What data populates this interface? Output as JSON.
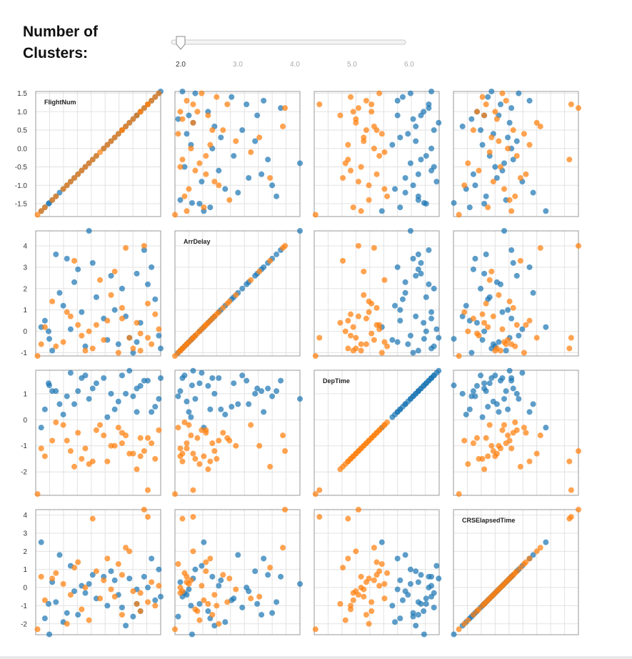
{
  "control": {
    "title": "Number of Clusters:",
    "slider": {
      "min": 2,
      "max": 6,
      "value": 2,
      "tick_labels": [
        "2.0",
        "3.0",
        "4.0",
        "5.0",
        "6.0"
      ]
    }
  },
  "chart_data": {
    "type": "scatter",
    "subtype": "scatterplot-matrix",
    "variables": [
      "FlightNum",
      "ArrDelay",
      "DepTime",
      "CRSElapsedTime"
    ],
    "cluster_colors": [
      "#1f77b4",
      "#ff7f0e"
    ],
    "cell_label_position": "top-left, on diagonal cells",
    "grid": true,
    "ranges": {
      "FlightNum": [
        -1.85,
        1.55
      ],
      "ArrDelay": [
        -1.15,
        4.7
      ],
      "DepTime": [
        -2.9,
        1.9
      ],
      "CRSElapsedTime": [
        -2.6,
        4.3
      ]
    },
    "tick_labels": {
      "FlightNum": [
        "1.5",
        "1.0",
        "0.5",
        "0.0",
        "-0.5",
        "-1.0",
        "-1.5"
      ],
      "ArrDelay": [
        "4",
        "3",
        "2",
        "1",
        "0",
        "-1"
      ],
      "DepTime": [
        "1",
        "0",
        "-1",
        "-2"
      ],
      "CRSElapsedTime": [
        "4",
        "3",
        "2",
        "1",
        "0",
        "-1",
        "-2"
      ]
    },
    "points": [
      {
        "FlightNum": -1.48,
        "ArrDelay": -0.35,
        "DepTime": 1.32,
        "CRSElapsedTime": -2.58,
        "cluster": 0
      },
      {
        "FlightNum": 1.55,
        "ArrDelay": -0.8,
        "DepTime": 1.6,
        "CRSElapsedTime": -0.5,
        "cluster": 0
      },
      {
        "FlightNum": -0.4,
        "ArrDelay": 4.7,
        "DepTime": 0.8,
        "CRSElapsedTime": 0.2,
        "cluster": 0
      },
      {
        "FlightNum": 0.7,
        "ArrDelay": -0.3,
        "DepTime": 1.88,
        "CRSElapsedTime": 0.5,
        "cluster": 0
      },
      {
        "FlightNum": -1.7,
        "ArrDelay": 0.2,
        "DepTime": -0.3,
        "CRSElapsedTime": 2.5,
        "cluster": 0
      },
      {
        "FlightNum": -1.6,
        "ArrDelay": 0.5,
        "DepTime": 0.4,
        "CRSElapsedTime": -1.7,
        "cluster": 0
      },
      {
        "FlightNum": -1.3,
        "ArrDelay": 3.6,
        "DepTime": 1.1,
        "CRSElapsedTime": -0.8,
        "cluster": 0
      },
      {
        "FlightNum": -1.0,
        "ArrDelay": 3.4,
        "DepTime": 0.9,
        "CRSElapsedTime": -1.4,
        "cluster": 0
      },
      {
        "FlightNum": 1.1,
        "ArrDelay": 3.8,
        "DepTime": 1.5,
        "CRSElapsedTime": 0.6,
        "cluster": 0
      },
      {
        "FlightNum": 0.9,
        "ArrDelay": 2.7,
        "DepTime": 1.2,
        "CRSElapsedTime": -0.9,
        "cluster": 0
      },
      {
        "FlightNum": -0.8,
        "ArrDelay": 2.3,
        "DepTime": 0.6,
        "CRSElapsedTime": -0.2,
        "cluster": 0
      },
      {
        "FlightNum": 0.5,
        "ArrDelay": 2.0,
        "DepTime": 1.7,
        "CRSElapsedTime": -1.1,
        "cluster": 0
      },
      {
        "FlightNum": 1.3,
        "ArrDelay": 3.0,
        "DepTime": 0.3,
        "CRSElapsedTime": 1.6,
        "cluster": 0
      },
      {
        "FlightNum": -0.2,
        "ArrDelay": 1.6,
        "DepTime": 1.4,
        "CRSElapsedTime": -0.6,
        "cluster": 0
      },
      {
        "FlightNum": -1.1,
        "ArrDelay": 1.2,
        "DepTime": 0.2,
        "CRSElapsedTime": -1.9,
        "cluster": 0
      },
      {
        "FlightNum": 0.2,
        "ArrDelay": 2.6,
        "DepTime": 1.0,
        "CRSElapsedTime": 0.9,
        "cluster": 0
      },
      {
        "FlightNum": 1.0,
        "ArrDelay": 0.4,
        "DepTime": 1.3,
        "CRSElapsedTime": -1.3,
        "cluster": 0
      },
      {
        "FlightNum": -0.6,
        "ArrDelay": 0.9,
        "DepTime": 1.6,
        "CRSElapsedTime": 0.1,
        "cluster": 0
      },
      {
        "FlightNum": 0.4,
        "ArrDelay": -0.6,
        "DepTime": 0.7,
        "CRSElapsedTime": -0.4,
        "cluster": 0
      },
      {
        "FlightNum": -1.4,
        "ArrDelay": -0.9,
        "DepTime": 1.1,
        "CRSElapsedTime": 0.3,
        "cluster": 0
      },
      {
        "FlightNum": 1.4,
        "ArrDelay": 1.5,
        "DepTime": 0.5,
        "CRSElapsedTime": -0.7,
        "cluster": 0
      },
      {
        "FlightNum": -0.9,
        "ArrDelay": 0.1,
        "DepTime": 1.8,
        "CRSElapsedTime": 1.2,
        "cluster": 0
      },
      {
        "FlightNum": 0.8,
        "ArrDelay": -1.0,
        "DepTime": 0.9,
        "CRSElapsedTime": -1.6,
        "cluster": 0
      },
      {
        "FlightNum": -0.3,
        "ArrDelay": 3.2,
        "DepTime": 1.2,
        "CRSElapsedTime": 0.7,
        "cluster": 0
      },
      {
        "FlightNum": 0.1,
        "ArrDelay": -0.4,
        "DepTime": 0.1,
        "CRSElapsedTime": -1.0,
        "cluster": 0
      },
      {
        "FlightNum": 1.2,
        "ArrDelay": 2.2,
        "DepTime": 1.5,
        "CRSElapsedTime": 0.0,
        "cluster": 0
      },
      {
        "FlightNum": -1.2,
        "ArrDelay": 1.8,
        "DepTime": 0.6,
        "CRSElapsedTime": 1.8,
        "cluster": 0
      },
      {
        "FlightNum": 0.6,
        "ArrDelay": 0.7,
        "DepTime": 1.0,
        "CRSElapsedTime": -2.1,
        "cluster": 0
      },
      {
        "FlightNum": -0.5,
        "ArrDelay": -0.7,
        "DepTime": 1.7,
        "CRSElapsedTime": -0.3,
        "cluster": 0
      },
      {
        "FlightNum": 0.3,
        "ArrDelay": 1.0,
        "DepTime": 0.4,
        "CRSElapsedTime": 0.4,
        "cluster": 0
      },
      {
        "FlightNum": -1.5,
        "ArrDelay": 0.0,
        "DepTime": 1.4,
        "CRSElapsedTime": -0.9,
        "cluster": 0
      },
      {
        "FlightNum": 1.5,
        "ArrDelay": -0.2,
        "DepTime": 0.8,
        "CRSElapsedTime": 1.0,
        "cluster": 0
      },
      {
        "FlightNum": -0.7,
        "ArrDelay": 2.9,
        "DepTime": 1.1,
        "CRSElapsedTime": -1.5,
        "cluster": 0
      },
      {
        "FlightNum": 0.0,
        "ArrDelay": 0.6,
        "DepTime": 1.6,
        "CRSElapsedTime": 0.6,
        "cluster": 0
      },
      {
        "FlightNum": 0.9,
        "ArrDelay": -0.5,
        "DepTime": 0.3,
        "CRSElapsedTime": -0.1,
        "cluster": 0
      },
      {
        "FlightNum": -1.8,
        "ArrDelay": -1.15,
        "DepTime": -2.85,
        "CRSElapsedTime": -2.3,
        "cluster": 1
      },
      {
        "FlightNum": 1.1,
        "ArrDelay": 4.0,
        "DepTime": -1.2,
        "CRSElapsedTime": 4.3,
        "cluster": 1
      },
      {
        "FlightNum": 1.2,
        "ArrDelay": -0.3,
        "DepTime": -2.7,
        "CRSElapsedTime": 3.9,
        "cluster": 1
      },
      {
        "FlightNum": 0.6,
        "ArrDelay": 3.9,
        "DepTime": -0.6,
        "CRSElapsedTime": 2.2,
        "cluster": 1
      },
      {
        "FlightNum": -0.8,
        "ArrDelay": 3.3,
        "DepTime": -1.8,
        "CRSElapsedTime": 1.1,
        "cluster": 1
      },
      {
        "FlightNum": 0.3,
        "ArrDelay": 2.8,
        "DepTime": -1.0,
        "CRSElapsedTime": -0.5,
        "cluster": 1
      },
      {
        "FlightNum": -1.4,
        "ArrDelay": 1.4,
        "DepTime": -0.8,
        "CRSElapsedTime": 0.5,
        "cluster": 1
      },
      {
        "FlightNum": 1.4,
        "ArrDelay": 0.8,
        "DepTime": -1.5,
        "CRSElapsedTime": -1.0,
        "cluster": 1
      },
      {
        "FlightNum": -0.2,
        "ArrDelay": 0.3,
        "DepTime": -0.4,
        "CRSElapsedTime": 0.9,
        "cluster": 1
      },
      {
        "FlightNum": 0.8,
        "ArrDelay": -0.8,
        "DepTime": -1.3,
        "CRSElapsedTime": -0.2,
        "cluster": 1
      },
      {
        "FlightNum": -1.1,
        "ArrDelay": -0.5,
        "DepTime": -0.2,
        "CRSElapsedTime": 0.2,
        "cluster": 1
      },
      {
        "FlightNum": 0.1,
        "ArrDelay": 0.5,
        "DepTime": -1.6,
        "CRSElapsedTime": 1.6,
        "cluster": 1
      },
      {
        "FlightNum": 1.0,
        "ArrDelay": -0.1,
        "DepTime": -0.7,
        "CRSElapsedTime": -1.3,
        "cluster": 1
      },
      {
        "FlightNum": -0.5,
        "ArrDelay": -0.9,
        "DepTime": -1.1,
        "CRSElapsedTime": 0.0,
        "cluster": 1
      },
      {
        "FlightNum": 0.5,
        "ArrDelay": 1.1,
        "DepTime": -0.5,
        "CRSElapsedTime": 0.7,
        "cluster": 1
      },
      {
        "FlightNum": -1.6,
        "ArrDelay": 0.2,
        "DepTime": -1.4,
        "CRSElapsedTime": -0.7,
        "cluster": 1
      },
      {
        "FlightNum": 1.3,
        "ArrDelay": -0.6,
        "DepTime": -0.9,
        "CRSElapsedTime": 0.3,
        "cluster": 1
      },
      {
        "FlightNum": -0.4,
        "ArrDelay": 0.0,
        "DepTime": -1.7,
        "CRSElapsedTime": -1.8,
        "cluster": 1
      },
      {
        "FlightNum": 0.4,
        "ArrDelay": -1.0,
        "DepTime": -0.3,
        "CRSElapsedTime": 1.3,
        "cluster": 1
      },
      {
        "FlightNum": -0.9,
        "ArrDelay": 0.7,
        "DepTime": -1.2,
        "CRSElapsedTime": -0.4,
        "cluster": 1
      },
      {
        "FlightNum": 0.0,
        "ArrDelay": -0.4,
        "DepTime": -0.6,
        "CRSElapsedTime": 0.4,
        "cluster": 1
      },
      {
        "FlightNum": 0.9,
        "ArrDelay": 0.4,
        "DepTime": -1.9,
        "CRSElapsedTime": -0.9,
        "cluster": 1
      },
      {
        "FlightNum": -1.3,
        "ArrDelay": -0.7,
        "DepTime": -0.1,
        "CRSElapsedTime": 0.8,
        "cluster": 1
      },
      {
        "FlightNum": 0.2,
        "ArrDelay": 1.7,
        "DepTime": -1.0,
        "CRSElapsedTime": -0.1,
        "cluster": 1
      },
      {
        "FlightNum": -0.6,
        "ArrDelay": -0.2,
        "DepTime": -1.5,
        "CRSElapsedTime": -1.2,
        "cluster": 1
      },
      {
        "FlightNum": 1.5,
        "ArrDelay": 0.1,
        "DepTime": -0.4,
        "CRSElapsedTime": 0.1,
        "cluster": 1
      },
      {
        "FlightNum": -1.0,
        "ArrDelay": 0.9,
        "DepTime": -0.8,
        "CRSElapsedTime": -2.0,
        "cluster": 1
      },
      {
        "FlightNum": 0.7,
        "ArrDelay": -0.3,
        "DepTime": -1.3,
        "CRSElapsedTime": 2.0,
        "cluster": 1
      },
      {
        "FlightNum": -0.1,
        "ArrDelay": 2.4,
        "DepTime": -0.2,
        "CRSElapsedTime": -0.6,
        "cluster": 1
      },
      {
        "FlightNum": -1.7,
        "ArrDelay": -0.6,
        "DepTime": -1.1,
        "CRSElapsedTime": 0.6,
        "cluster": 1
      },
      {
        "FlightNum": 1.2,
        "ArrDelay": 1.3,
        "DepTime": -0.7,
        "CRSElapsedTime": -0.8,
        "cluster": 1
      },
      {
        "FlightNum": -0.3,
        "ArrDelay": -0.8,
        "DepTime": -1.6,
        "CRSElapsedTime": 3.8,
        "cluster": 1
      },
      {
        "FlightNum": 0.5,
        "ArrDelay": 0.6,
        "DepTime": -0.9,
        "CRSElapsedTime": -1.5,
        "cluster": 1
      },
      {
        "FlightNum": -0.7,
        "ArrDelay": 0.3,
        "DepTime": -0.5,
        "CRSElapsedTime": 1.4,
        "cluster": 1
      },
      {
        "FlightNum": 1.0,
        "ArrDelay": -0.9,
        "DepTime": -1.4,
        "CRSElapsedTime": -0.3,
        "cluster": 1
      }
    ]
  }
}
